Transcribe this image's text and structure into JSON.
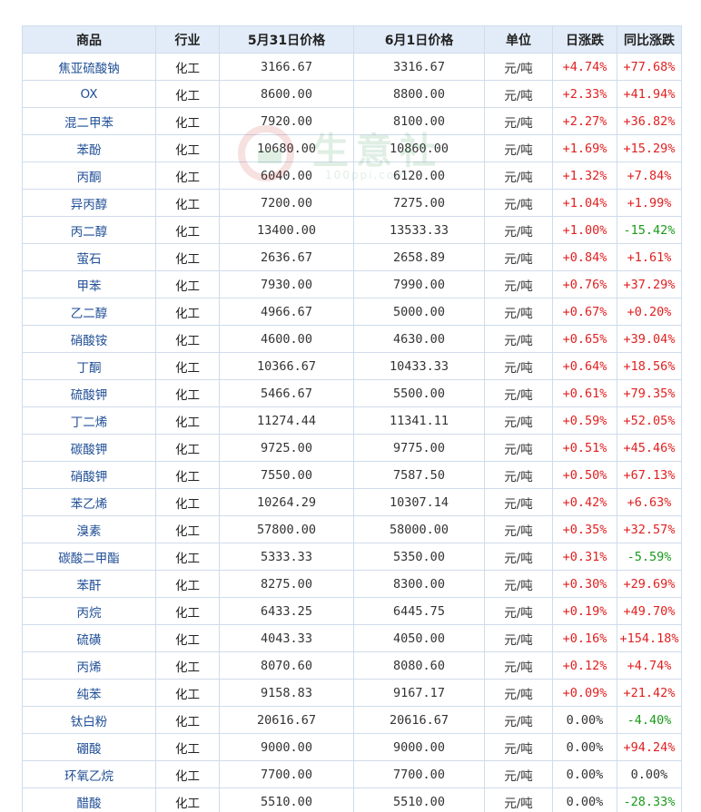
{
  "table": {
    "headers": [
      "商品",
      "行业",
      "5月31日价格",
      "6月1日价格",
      "单位",
      "日涨跌",
      "同比涨跌"
    ],
    "rows": [
      {
        "name": "焦亚硫酸钠",
        "industry": "化工",
        "p1": "3166.67",
        "p2": "3316.67",
        "unit": "元/吨",
        "day": "+4.74%",
        "yoy": "+77.68%"
      },
      {
        "name": "OX",
        "industry": "化工",
        "p1": "8600.00",
        "p2": "8800.00",
        "unit": "元/吨",
        "day": "+2.33%",
        "yoy": "+41.94%"
      },
      {
        "name": "混二甲苯",
        "industry": "化工",
        "p1": "7920.00",
        "p2": "8100.00",
        "unit": "元/吨",
        "day": "+2.27%",
        "yoy": "+36.82%"
      },
      {
        "name": "苯酚",
        "industry": "化工",
        "p1": "10680.00",
        "p2": "10860.00",
        "unit": "元/吨",
        "day": "+1.69%",
        "yoy": "+15.29%"
      },
      {
        "name": "丙酮",
        "industry": "化工",
        "p1": "6040.00",
        "p2": "6120.00",
        "unit": "元/吨",
        "day": "+1.32%",
        "yoy": "+7.84%"
      },
      {
        "name": "异丙醇",
        "industry": "化工",
        "p1": "7200.00",
        "p2": "7275.00",
        "unit": "元/吨",
        "day": "+1.04%",
        "yoy": "+1.99%"
      },
      {
        "name": "丙二醇",
        "industry": "化工",
        "p1": "13400.00",
        "p2": "13533.33",
        "unit": "元/吨",
        "day": "+1.00%",
        "yoy": "-15.42%"
      },
      {
        "name": "萤石",
        "industry": "化工",
        "p1": "2636.67",
        "p2": "2658.89",
        "unit": "元/吨",
        "day": "+0.84%",
        "yoy": "+1.61%"
      },
      {
        "name": "甲苯",
        "industry": "化工",
        "p1": "7930.00",
        "p2": "7990.00",
        "unit": "元/吨",
        "day": "+0.76%",
        "yoy": "+37.29%"
      },
      {
        "name": "乙二醇",
        "industry": "化工",
        "p1": "4966.67",
        "p2": "5000.00",
        "unit": "元/吨",
        "day": "+0.67%",
        "yoy": "+0.20%"
      },
      {
        "name": "硝酸铵",
        "industry": "化工",
        "p1": "4600.00",
        "p2": "4630.00",
        "unit": "元/吨",
        "day": "+0.65%",
        "yoy": "+39.04%"
      },
      {
        "name": "丁酮",
        "industry": "化工",
        "p1": "10366.67",
        "p2": "10433.33",
        "unit": "元/吨",
        "day": "+0.64%",
        "yoy": "+18.56%"
      },
      {
        "name": "硫酸钾",
        "industry": "化工",
        "p1": "5466.67",
        "p2": "5500.00",
        "unit": "元/吨",
        "day": "+0.61%",
        "yoy": "+79.35%"
      },
      {
        "name": "丁二烯",
        "industry": "化工",
        "p1": "11274.44",
        "p2": "11341.11",
        "unit": "元/吨",
        "day": "+0.59%",
        "yoy": "+52.05%"
      },
      {
        "name": "碳酸钾",
        "industry": "化工",
        "p1": "9725.00",
        "p2": "9775.00",
        "unit": "元/吨",
        "day": "+0.51%",
        "yoy": "+45.46%"
      },
      {
        "name": "硝酸钾",
        "industry": "化工",
        "p1": "7550.00",
        "p2": "7587.50",
        "unit": "元/吨",
        "day": "+0.50%",
        "yoy": "+67.13%"
      },
      {
        "name": "苯乙烯",
        "industry": "化工",
        "p1": "10264.29",
        "p2": "10307.14",
        "unit": "元/吨",
        "day": "+0.42%",
        "yoy": "+6.63%"
      },
      {
        "name": "溴素",
        "industry": "化工",
        "p1": "57800.00",
        "p2": "58000.00",
        "unit": "元/吨",
        "day": "+0.35%",
        "yoy": "+32.57%"
      },
      {
        "name": "碳酸二甲酯",
        "industry": "化工",
        "p1": "5333.33",
        "p2": "5350.00",
        "unit": "元/吨",
        "day": "+0.31%",
        "yoy": "-5.59%"
      },
      {
        "name": "苯酐",
        "industry": "化工",
        "p1": "8275.00",
        "p2": "8300.00",
        "unit": "元/吨",
        "day": "+0.30%",
        "yoy": "+29.69%"
      },
      {
        "name": "丙烷",
        "industry": "化工",
        "p1": "6433.25",
        "p2": "6445.75",
        "unit": "元/吨",
        "day": "+0.19%",
        "yoy": "+49.70%"
      },
      {
        "name": "硫磺",
        "industry": "化工",
        "p1": "4043.33",
        "p2": "4050.00",
        "unit": "元/吨",
        "day": "+0.16%",
        "yoy": "+154.18%"
      },
      {
        "name": "丙烯",
        "industry": "化工",
        "p1": "8070.60",
        "p2": "8080.60",
        "unit": "元/吨",
        "day": "+0.12%",
        "yoy": "+4.74%"
      },
      {
        "name": "纯苯",
        "industry": "化工",
        "p1": "9158.83",
        "p2": "9167.17",
        "unit": "元/吨",
        "day": "+0.09%",
        "yoy": "+21.42%"
      },
      {
        "name": "钛白粉",
        "industry": "化工",
        "p1": "20616.67",
        "p2": "20616.67",
        "unit": "元/吨",
        "day": "0.00%",
        "yoy": "-4.40%"
      },
      {
        "name": "硼酸",
        "industry": "化工",
        "p1": "9000.00",
        "p2": "9000.00",
        "unit": "元/吨",
        "day": "0.00%",
        "yoy": "+94.24%"
      },
      {
        "name": "环氧乙烷",
        "industry": "化工",
        "p1": "7700.00",
        "p2": "7700.00",
        "unit": "元/吨",
        "day": "0.00%",
        "yoy": "0.00%"
      },
      {
        "name": "醋酸",
        "industry": "化工",
        "p1": "5510.00",
        "p2": "5510.00",
        "unit": "元/吨",
        "day": "0.00%",
        "yoy": "-28.33%"
      }
    ]
  },
  "watermark": {
    "brand": "生意社",
    "sub": "100ppi.com"
  },
  "colors": {
    "up": "#e02020",
    "down": "#1a9a1a",
    "header_bg": "#e2ecf8",
    "link": "#1f4e96"
  }
}
